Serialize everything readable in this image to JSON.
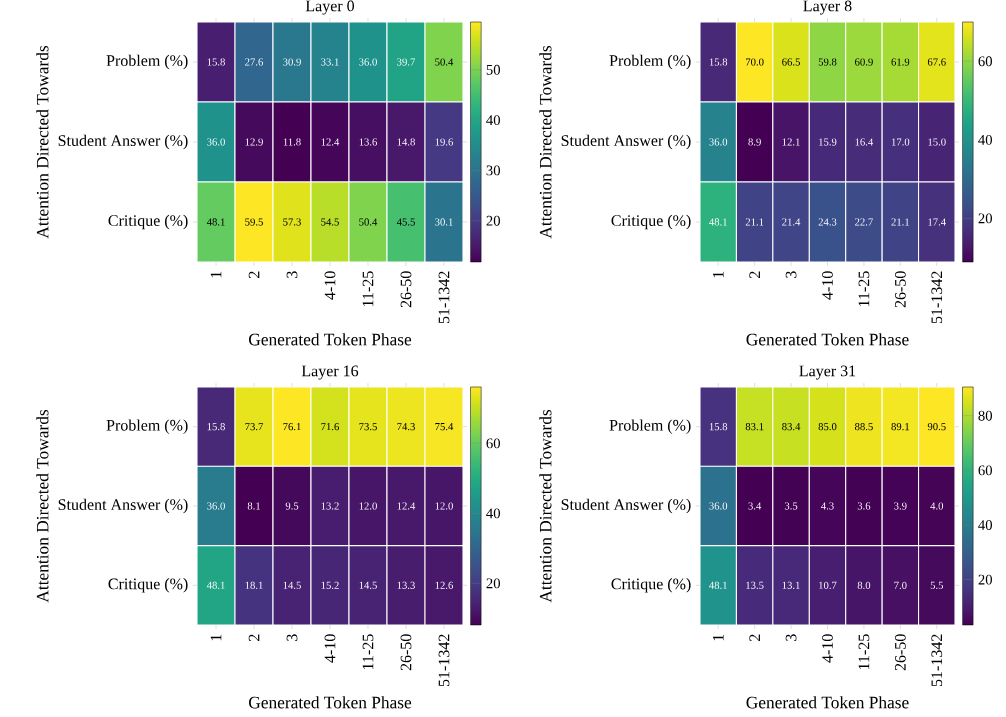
{
  "chart_data": [
    {
      "type": "heatmap",
      "title": "Layer 0",
      "xlabel": "Generated Token Phase",
      "ylabel": "Attention Directed Towards",
      "categories": [
        "1",
        "2",
        "3",
        "4-10",
        "11-25",
        "26-50",
        "51-1342"
      ],
      "y_categories": [
        "Problem (%)",
        "Student Answer (%)",
        "Critique (%)"
      ],
      "cells": [
        [
          15.8,
          27.6,
          30.9,
          33.1,
          36.0,
          39.7,
          50.4
        ],
        [
          36.0,
          12.9,
          11.8,
          12.4,
          13.6,
          14.8,
          19.6
        ],
        [
          48.1,
          59.5,
          57.3,
          54.5,
          50.4,
          45.5,
          30.1
        ]
      ],
      "cell_labels": [
        [
          "15.8",
          "27.6",
          "30.9",
          "33.1",
          "36.0",
          "39.7",
          "50.4"
        ],
        [
          "36.0",
          "12.9",
          "11.8",
          "12.4",
          "13.6",
          "14.8",
          "19.6"
        ],
        [
          "48.1",
          "59.5",
          "57.3",
          "54.5",
          "50.4",
          "45.5",
          "30.1"
        ]
      ],
      "clim": [
        11.8,
        59.5
      ],
      "cticks": [
        20,
        30,
        40,
        50
      ]
    },
    {
      "type": "heatmap",
      "title": "Layer 8",
      "xlabel": "Generated Token Phase",
      "ylabel": "Attention Directed Towards",
      "categories": [
        "1",
        "2",
        "3",
        "4-10",
        "11-25",
        "26-50",
        "51-1342"
      ],
      "y_categories": [
        "Problem (%)",
        "Student Answer (%)",
        "Critique (%)"
      ],
      "cells": [
        [
          15.8,
          70.0,
          66.5,
          59.8,
          60.9,
          61.9,
          67.6
        ],
        [
          36.0,
          8.9,
          12.1,
          15.9,
          16.4,
          17.0,
          15.0
        ],
        [
          48.1,
          21.1,
          21.4,
          24.3,
          22.7,
          21.1,
          17.4
        ]
      ],
      "cell_labels": [
        [
          "15.8",
          "70.0",
          "66.5",
          "59.8",
          "60.9",
          "61.9",
          "67.6"
        ],
        [
          "36.0",
          "8.9",
          "12.1",
          "15.9",
          "16.4",
          "17.0",
          "15.0"
        ],
        [
          "48.1",
          "21.1",
          "21.4",
          "24.3",
          "22.7",
          "21.1",
          "17.4"
        ]
      ],
      "clim": [
        8.9,
        70.0
      ],
      "cticks": [
        20,
        40,
        60
      ]
    },
    {
      "type": "heatmap",
      "title": "Layer 16",
      "xlabel": "Generated Token Phase",
      "ylabel": "Attention Directed Towards",
      "categories": [
        "1",
        "2",
        "3",
        "4-10",
        "11-25",
        "26-50",
        "51-1342"
      ],
      "y_categories": [
        "Problem (%)",
        "Student Answer (%)",
        "Critique (%)"
      ],
      "cells": [
        [
          15.8,
          73.7,
          76.1,
          71.6,
          73.5,
          74.3,
          75.4
        ],
        [
          36.0,
          8.1,
          9.5,
          13.2,
          12.0,
          12.4,
          12.0
        ],
        [
          48.1,
          18.1,
          14.5,
          15.2,
          14.5,
          13.3,
          12.6
        ]
      ],
      "cell_labels": [
        [
          "15.8",
          "73.7",
          "76.1",
          "71.6",
          "73.5",
          "74.3",
          "75.4"
        ],
        [
          "36.0",
          "8.1",
          "9.5",
          "13.2",
          "12.0",
          "12.4",
          "12.0"
        ],
        [
          "48.1",
          "18.1",
          "14.5",
          "15.2",
          "14.5",
          "13.3",
          "12.6"
        ]
      ],
      "clim": [
        8.1,
        76.1
      ],
      "cticks": [
        20,
        40,
        60
      ]
    },
    {
      "type": "heatmap",
      "title": "Layer 31",
      "xlabel": "Generated Token Phase",
      "ylabel": "Attention Directed Towards",
      "categories": [
        "1",
        "2",
        "3",
        "4-10",
        "11-25",
        "26-50",
        "51-1342"
      ],
      "y_categories": [
        "Problem (%)",
        "Student Answer (%)",
        "Critique (%)"
      ],
      "cells": [
        [
          15.8,
          83.1,
          83.4,
          85.0,
          88.5,
          89.1,
          90.5
        ],
        [
          36.0,
          3.4,
          3.5,
          4.3,
          3.6,
          3.9,
          4.0
        ],
        [
          48.1,
          13.5,
          13.1,
          10.7,
          8.0,
          7.0,
          5.5
        ]
      ],
      "cell_labels": [
        [
          "15.8",
          "83.1",
          "83.4",
          "85.0",
          "88.5",
          "89.1",
          "90.5"
        ],
        [
          "36.0",
          "3.4",
          "3.5",
          "4.3",
          "3.6",
          "3.9",
          "4.0"
        ],
        [
          "48.1",
          "13.5",
          "13.1",
          "10.7",
          "8.0",
          "7.0",
          "5.5"
        ]
      ],
      "clim": [
        3.4,
        90.5
      ],
      "cticks": [
        20,
        40,
        60,
        80
      ]
    }
  ]
}
